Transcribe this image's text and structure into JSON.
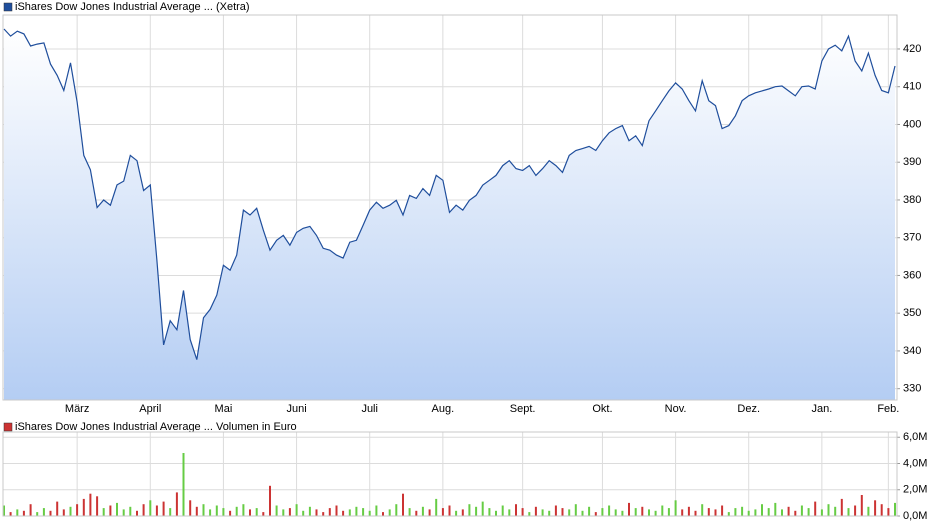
{
  "chart_data": [
    {
      "type": "line",
      "title": "iShares Dow Jones Industrial Average ... (Xetra)",
      "color": "#1f4e9c",
      "grid": true,
      "categories": [
        null,
        null,
        null,
        null,
        null,
        null,
        null,
        null,
        null,
        null,
        null,
        "März",
        null,
        null,
        null,
        null,
        null,
        null,
        null,
        null,
        null,
        null,
        "April",
        null,
        null,
        null,
        null,
        null,
        null,
        null,
        null,
        null,
        null,
        "Mai",
        null,
        null,
        null,
        null,
        null,
        null,
        null,
        null,
        null,
        null,
        "Juni",
        null,
        null,
        null,
        null,
        null,
        null,
        null,
        null,
        null,
        null,
        "Juli",
        null,
        null,
        null,
        null,
        null,
        null,
        null,
        null,
        null,
        null,
        "Aug.",
        null,
        null,
        null,
        null,
        null,
        null,
        null,
        null,
        null,
        null,
        null,
        "Sept.",
        null,
        null,
        null,
        null,
        null,
        null,
        null,
        null,
        null,
        null,
        null,
        "Okt.",
        null,
        null,
        null,
        null,
        null,
        null,
        null,
        null,
        null,
        null,
        "Nov.",
        null,
        null,
        null,
        null,
        null,
        null,
        null,
        null,
        null,
        null,
        "Dez.",
        null,
        null,
        null,
        null,
        null,
        null,
        null,
        null,
        null,
        null,
        "Jan.",
        null,
        null,
        null,
        null,
        null,
        null,
        null,
        null,
        null,
        "Feb.",
        null
      ],
      "values": [
        425.3,
        423.4,
        424.7,
        424,
        420.8,
        421.3,
        421.6,
        416,
        413,
        409,
        416.3,
        406,
        391.8,
        388,
        378,
        380,
        378.6,
        384,
        385,
        391.8,
        390.4,
        382.5,
        384,
        364,
        341.6,
        348,
        345.6,
        356,
        343,
        337.7,
        348.8,
        351,
        354.8,
        362.7,
        361.4,
        365.4,
        377.3,
        376,
        377.8,
        372,
        366.7,
        369.3,
        370.6,
        368,
        371.4,
        372.5,
        373,
        370.6,
        367.2,
        366.7,
        365.4,
        364.6,
        368.8,
        369.3,
        373.3,
        377.3,
        379.4,
        377.8,
        378.6,
        379.9,
        376,
        381.2,
        380.4,
        383,
        381.2,
        386.5,
        385.2,
        376.7,
        378.6,
        377.3,
        379.9,
        381.2,
        383.9,
        385.2,
        386.5,
        389.1,
        390.4,
        388.3,
        387.8,
        389.1,
        386.5,
        388.3,
        390.4,
        389.1,
        387.3,
        391.8,
        393.1,
        393.6,
        394.2,
        393.1,
        395.7,
        397.8,
        398.9,
        399.7,
        395.7,
        397,
        394.4,
        401,
        403.6,
        406.3,
        408.9,
        411,
        409.4,
        406.3,
        403.6,
        411.6,
        406.3,
        405,
        398.9,
        399.7,
        402.3,
        406.3,
        407.6,
        408.4,
        408.9,
        409.4,
        410,
        410.2,
        408.9,
        407.6,
        410,
        410.2,
        409.4,
        416.8,
        420,
        421,
        419.5,
        423.4,
        416.8,
        414.2,
        418.9,
        413,
        409,
        408.4,
        415.5
      ],
      "ylim": [
        327,
        429
      ],
      "yticks": [
        330,
        340,
        350,
        360,
        370,
        380,
        390,
        400,
        410,
        420
      ]
    },
    {
      "type": "bar",
      "title": "iShares Dow Jones Industrial Average ... Volumen in Euro",
      "color": "#cc3333",
      "up_color": "#66cc44",
      "down_color": "#cc3333",
      "grid": true,
      "values": [
        0.8,
        0.3,
        0.5,
        0.4,
        0.9,
        0.3,
        0.6,
        0.4,
        1.1,
        0.5,
        0.7,
        0.9,
        1.3,
        1.7,
        1.5,
        0.6,
        0.8,
        1.0,
        0.5,
        0.7,
        0.4,
        0.9,
        1.2,
        0.8,
        1.1,
        0.6,
        1.8,
        4.8,
        1.2,
        0.7,
        0.9,
        0.5,
        0.8,
        0.6,
        0.4,
        0.7,
        0.9,
        0.5,
        0.6,
        0.3,
        2.3,
        0.8,
        0.5,
        0.6,
        0.9,
        0.4,
        0.7,
        0.5,
        0.3,
        0.6,
        0.8,
        0.4,
        0.5,
        0.7,
        0.6,
        0.4,
        0.8,
        0.3,
        0.5,
        0.9,
        1.7,
        0.6,
        0.4,
        0.7,
        0.5,
        1.3,
        0.6,
        0.8,
        0.4,
        0.5,
        0.9,
        0.7,
        1.1,
        0.6,
        0.4,
        0.8,
        0.5,
        0.9,
        0.6,
        0.3,
        0.7,
        0.5,
        0.4,
        0.8,
        0.6,
        0.5,
        0.9,
        0.4,
        0.7,
        0.3,
        0.6,
        0.8,
        0.5,
        0.4,
        1.0,
        0.6,
        0.7,
        0.5,
        0.4,
        0.8,
        0.6,
        1.2,
        0.5,
        0.7,
        0.4,
        0.9,
        0.6,
        0.5,
        0.8,
        0.3,
        0.6,
        0.7,
        0.4,
        0.5,
        0.9,
        0.6,
        1.0,
        0.5,
        0.7,
        0.4,
        0.8,
        0.6,
        1.1,
        0.5,
        0.9,
        0.7,
        1.3,
        0.6,
        0.8,
        1.6,
        0.7,
        1.2,
        0.9,
        0.6,
        1.0
      ],
      "ylim": [
        0,
        6.4
      ],
      "yticks": [
        {
          "value": 0,
          "label": "0,0M"
        },
        {
          "value": 2,
          "label": "2,0M"
        },
        {
          "value": 4,
          "label": "4,0M"
        },
        {
          "value": 6,
          "label": "6,0M"
        }
      ]
    }
  ]
}
